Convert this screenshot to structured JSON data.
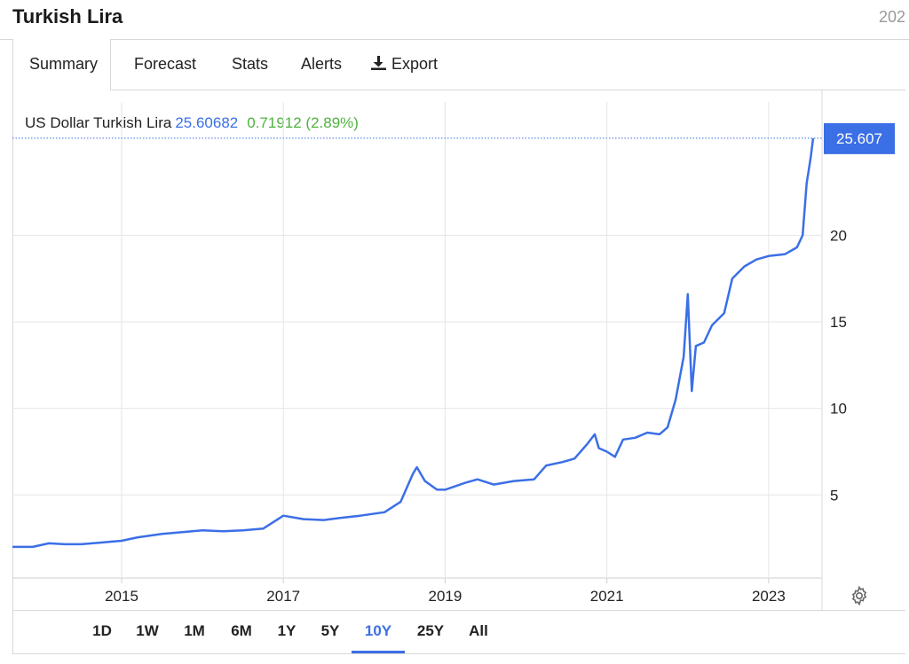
{
  "header": {
    "title": "Turkish Lira",
    "year_fragment": "202"
  },
  "tabs": [
    {
      "label": "Summary",
      "active": true
    },
    {
      "label": "Forecast"
    },
    {
      "label": "Stats"
    },
    {
      "label": "Alerts"
    },
    {
      "label": "Export",
      "icon": "download-icon"
    }
  ],
  "quote": {
    "name": "US Dollar Turkish Lira",
    "price": "25.60682",
    "change": "0.71912 (2.89%)",
    "last_label": "25.607",
    "price_color": "#3b6fe6",
    "change_color": "#4fb33f"
  },
  "ranges": [
    {
      "label": "1D"
    },
    {
      "label": "1W"
    },
    {
      "label": "1M"
    },
    {
      "label": "6M"
    },
    {
      "label": "1Y"
    },
    {
      "label": "5Y"
    },
    {
      "label": "10Y",
      "active": true
    },
    {
      "label": "25Y"
    },
    {
      "label": "All"
    }
  ],
  "settings_icon": "gear-icon",
  "chart_data": {
    "type": "line",
    "title": "",
    "xlabel": "",
    "ylabel": "",
    "x_ticks": [
      "2015",
      "2017",
      "2019",
      "2021",
      "2023"
    ],
    "y_ticks": [
      5,
      10,
      15,
      20
    ],
    "xlim": [
      2013.65,
      2023.55
    ],
    "ylim": [
      0.2,
      27.7
    ],
    "grid": true,
    "line_color": "#3b6fe6",
    "last_value": 25.607,
    "series": [
      {
        "values": [
          [
            2013.65,
            2.0
          ],
          [
            2013.9,
            2.0
          ],
          [
            2014.1,
            2.2
          ],
          [
            2014.3,
            2.15
          ],
          [
            2014.5,
            2.15
          ],
          [
            2014.75,
            2.25
          ],
          [
            2015.0,
            2.35
          ],
          [
            2015.2,
            2.55
          ],
          [
            2015.5,
            2.75
          ],
          [
            2015.75,
            2.85
          ],
          [
            2016.0,
            2.95
          ],
          [
            2016.25,
            2.9
          ],
          [
            2016.5,
            2.95
          ],
          [
            2016.75,
            3.05
          ],
          [
            2016.9,
            3.5
          ],
          [
            2017.0,
            3.8
          ],
          [
            2017.25,
            3.6
          ],
          [
            2017.5,
            3.55
          ],
          [
            2017.75,
            3.7
          ],
          [
            2017.95,
            3.8
          ],
          [
            2018.25,
            4.0
          ],
          [
            2018.45,
            4.6
          ],
          [
            2018.6,
            6.2
          ],
          [
            2018.65,
            6.6
          ],
          [
            2018.75,
            5.8
          ],
          [
            2018.9,
            5.3
          ],
          [
            2019.0,
            5.3
          ],
          [
            2019.25,
            5.7
          ],
          [
            2019.4,
            5.9
          ],
          [
            2019.6,
            5.6
          ],
          [
            2019.85,
            5.8
          ],
          [
            2020.1,
            5.9
          ],
          [
            2020.25,
            6.7
          ],
          [
            2020.45,
            6.9
          ],
          [
            2020.6,
            7.1
          ],
          [
            2020.75,
            7.9
          ],
          [
            2020.85,
            8.5
          ],
          [
            2020.9,
            7.7
          ],
          [
            2021.0,
            7.5
          ],
          [
            2021.1,
            7.2
          ],
          [
            2021.2,
            8.2
          ],
          [
            2021.35,
            8.3
          ],
          [
            2021.5,
            8.6
          ],
          [
            2021.65,
            8.5
          ],
          [
            2021.75,
            8.9
          ],
          [
            2021.85,
            10.5
          ],
          [
            2021.95,
            13.0
          ],
          [
            2022.0,
            16.6
          ],
          [
            2022.05,
            11.0
          ],
          [
            2022.1,
            13.6
          ],
          [
            2022.2,
            13.8
          ],
          [
            2022.3,
            14.8
          ],
          [
            2022.45,
            15.5
          ],
          [
            2022.55,
            17.5
          ],
          [
            2022.7,
            18.2
          ],
          [
            2022.85,
            18.6
          ],
          [
            2023.0,
            18.8
          ],
          [
            2023.2,
            18.9
          ],
          [
            2023.35,
            19.3
          ],
          [
            2023.42,
            20.0
          ],
          [
            2023.47,
            23.0
          ],
          [
            2023.52,
            24.5
          ],
          [
            2023.55,
            25.607
          ]
        ]
      }
    ]
  }
}
